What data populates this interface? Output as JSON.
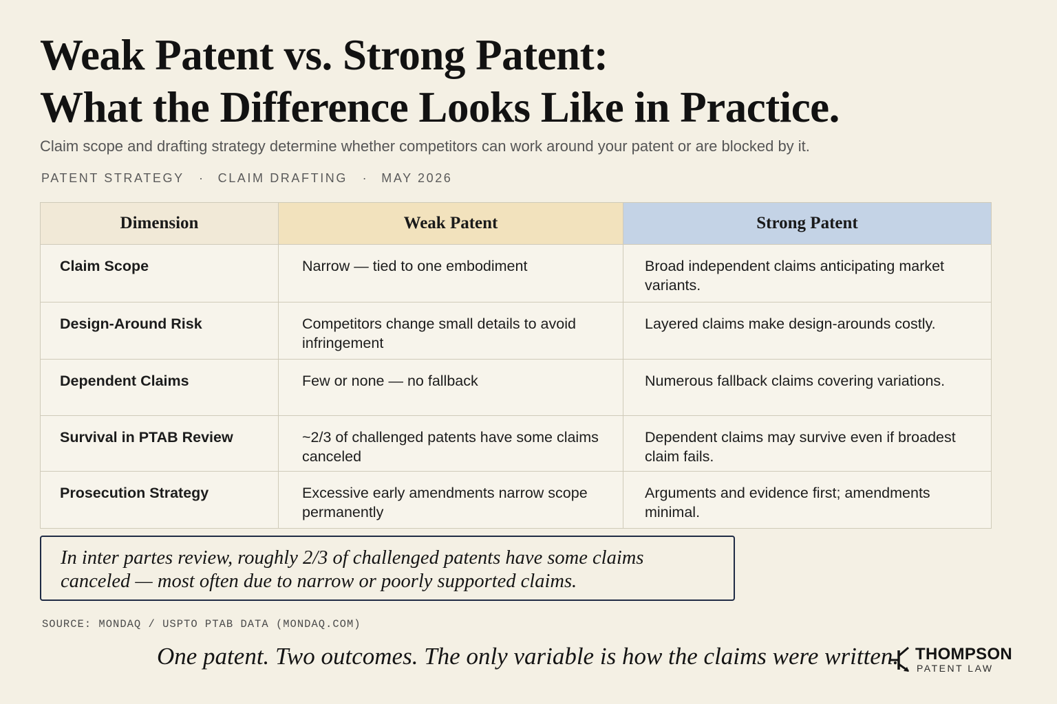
{
  "header": {
    "title_line1": "Weak Patent vs. Strong Patent:",
    "title_line2": "What the Difference Looks Like in Practice.",
    "subtitle": "Claim scope and drafting strategy determine whether competitors can work around your patent or are blocked by it.",
    "tags": [
      "PATENT STRATEGY",
      "CLAIM DRAFTING",
      "MAY 2026"
    ],
    "separator": "·"
  },
  "table": {
    "headers": [
      "Dimension",
      "Weak Patent",
      "Strong Patent"
    ],
    "header_colors": {
      "dimension": "#f1e9d7",
      "weak": "#f2e2bd",
      "strong": "#c4d3e6"
    },
    "rows": [
      {
        "dimension": "Claim Scope",
        "weak": "Narrow — tied to one embodiment",
        "strong": "Broad independent claims anticipating market variants."
      },
      {
        "dimension": "Design-Around Risk",
        "weak": "Competitors change small details to avoid infringement",
        "strong": "Layered claims make design-arounds costly."
      },
      {
        "dimension": "Dependent Claims",
        "weak": "Few or none — no fallback",
        "strong": "Numerous fallback claims covering variations."
      },
      {
        "dimension": "Survival in PTAB Review",
        "weak": "~2/3 of challenged patents have some claims canceled",
        "strong": "Dependent claims may survive even if broadest claim fails."
      },
      {
        "dimension": "Prosecution Strategy",
        "weak": "Excessive early amendments narrow scope permanently",
        "strong": "Arguments and evidence first; amendments minimal."
      }
    ]
  },
  "callout": {
    "text": "In inter partes review, roughly 2/3 of challenged patents have some claims canceled — most often due to narrow or poorly supported claims."
  },
  "source": "SOURCE: MONDAQ / USPTO PTAB DATA (MONDAQ.COM)",
  "tagline": "One patent. Two outcomes. The only variable is how the claims were written.",
  "brand": {
    "name": "THOMPSON",
    "sub": "PATENT LAW",
    "icon": "transistor-symbol-icon"
  }
}
